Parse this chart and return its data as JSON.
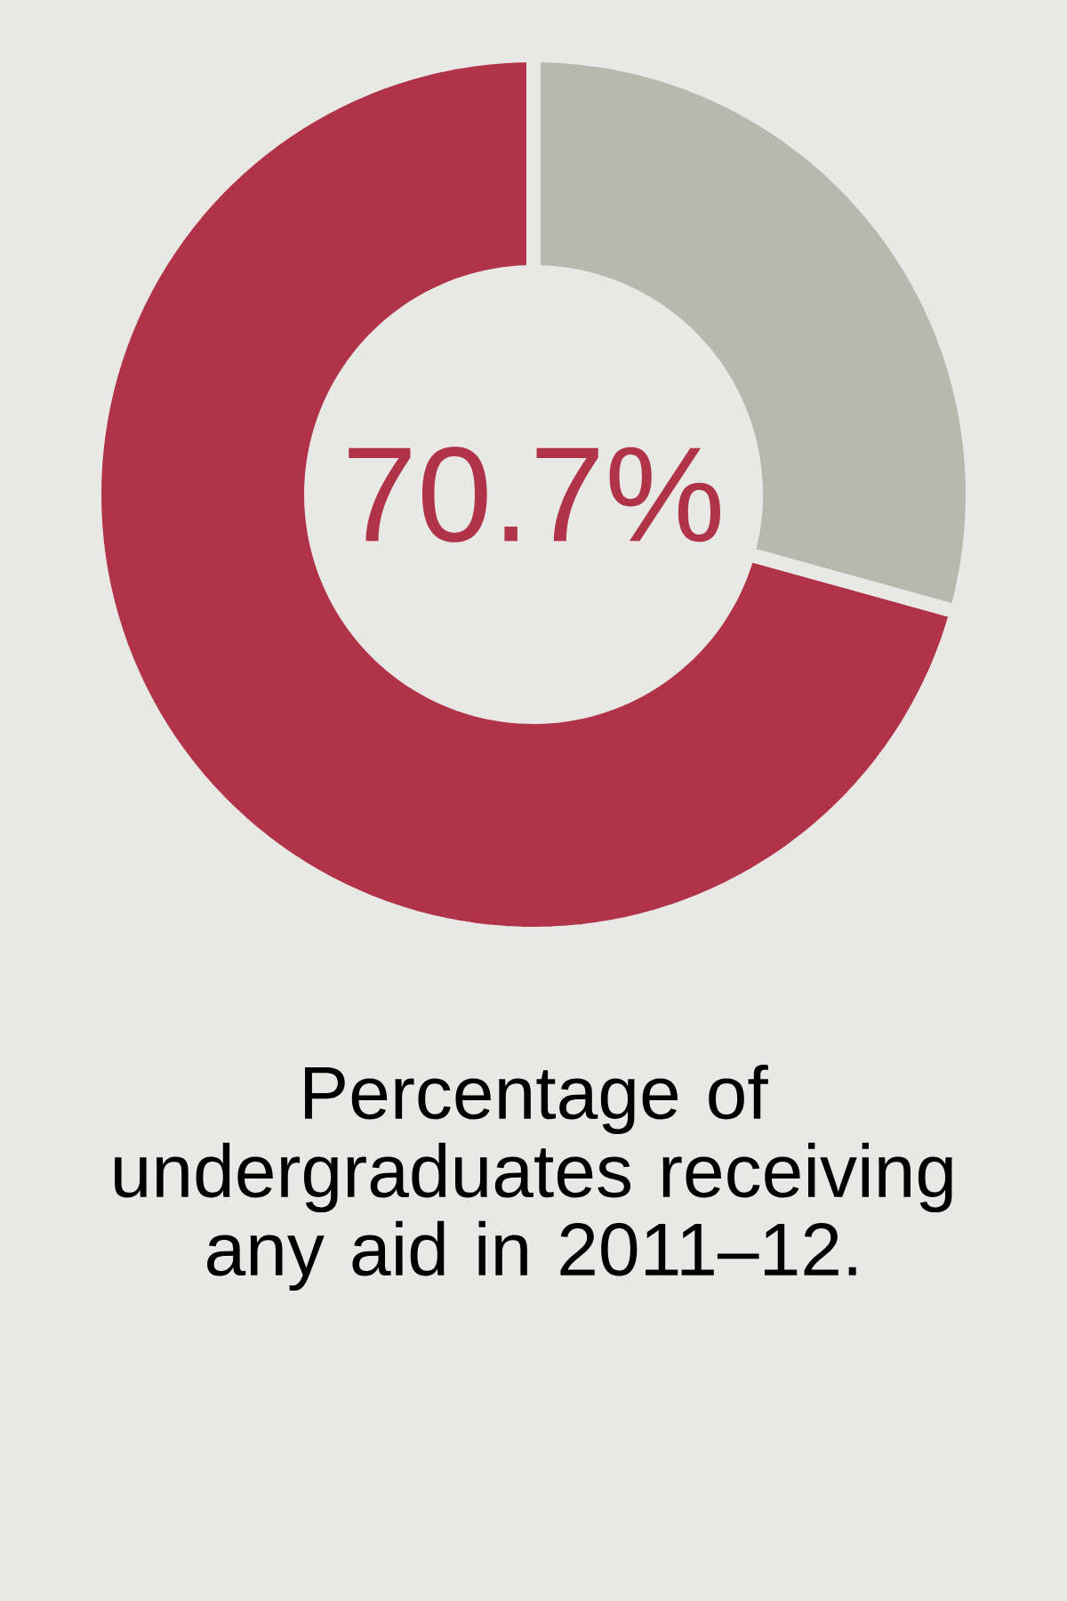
{
  "chart_data": {
    "type": "donut",
    "title": "Percentage of undergraduates receiving any aid in 2011–12.",
    "categories": [
      null,
      null
    ],
    "values": [
      70.7,
      29.3
    ],
    "colors": [
      "#b03347",
      "#b7b8ae"
    ],
    "annotations": [
      "70.7%"
    ]
  }
}
